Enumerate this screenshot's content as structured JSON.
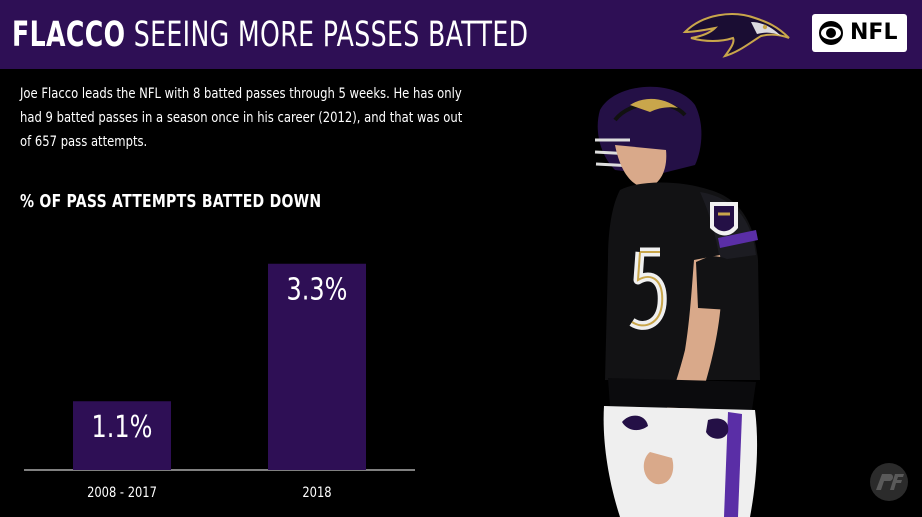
{
  "header": {
    "title_strong": "FLACCO",
    "title_rest": "SEEING MORE PASSES BATTED",
    "logos": [
      "ravens-logo",
      "cbs-eye-icon",
      "nfl-logo"
    ],
    "nfl_text": "NFL",
    "background_color": "#2e0f55"
  },
  "description": "Joe Flacco leads the NFL with 8 batted passes through 5 weeks. He has only had 9 batted passes in a season once in his career (2012), and that was out of 657 pass attempts.",
  "chart_title": "% OF PASS ATTEMPTS BATTED DOWN",
  "chart_data": {
    "type": "bar",
    "title": "% OF PASS ATTEMPTS BATTED DOWN",
    "categories": [
      "2008 - 2017",
      "2018"
    ],
    "values": [
      1.1,
      3.3
    ],
    "value_labels": [
      "1.1%",
      "3.3%"
    ],
    "ylim": [
      0,
      3.6
    ],
    "grid": false,
    "bar_color": "#2e0f55",
    "axis_color": "#aaaaaa"
  },
  "footer": {
    "logo": "pff-logo"
  }
}
